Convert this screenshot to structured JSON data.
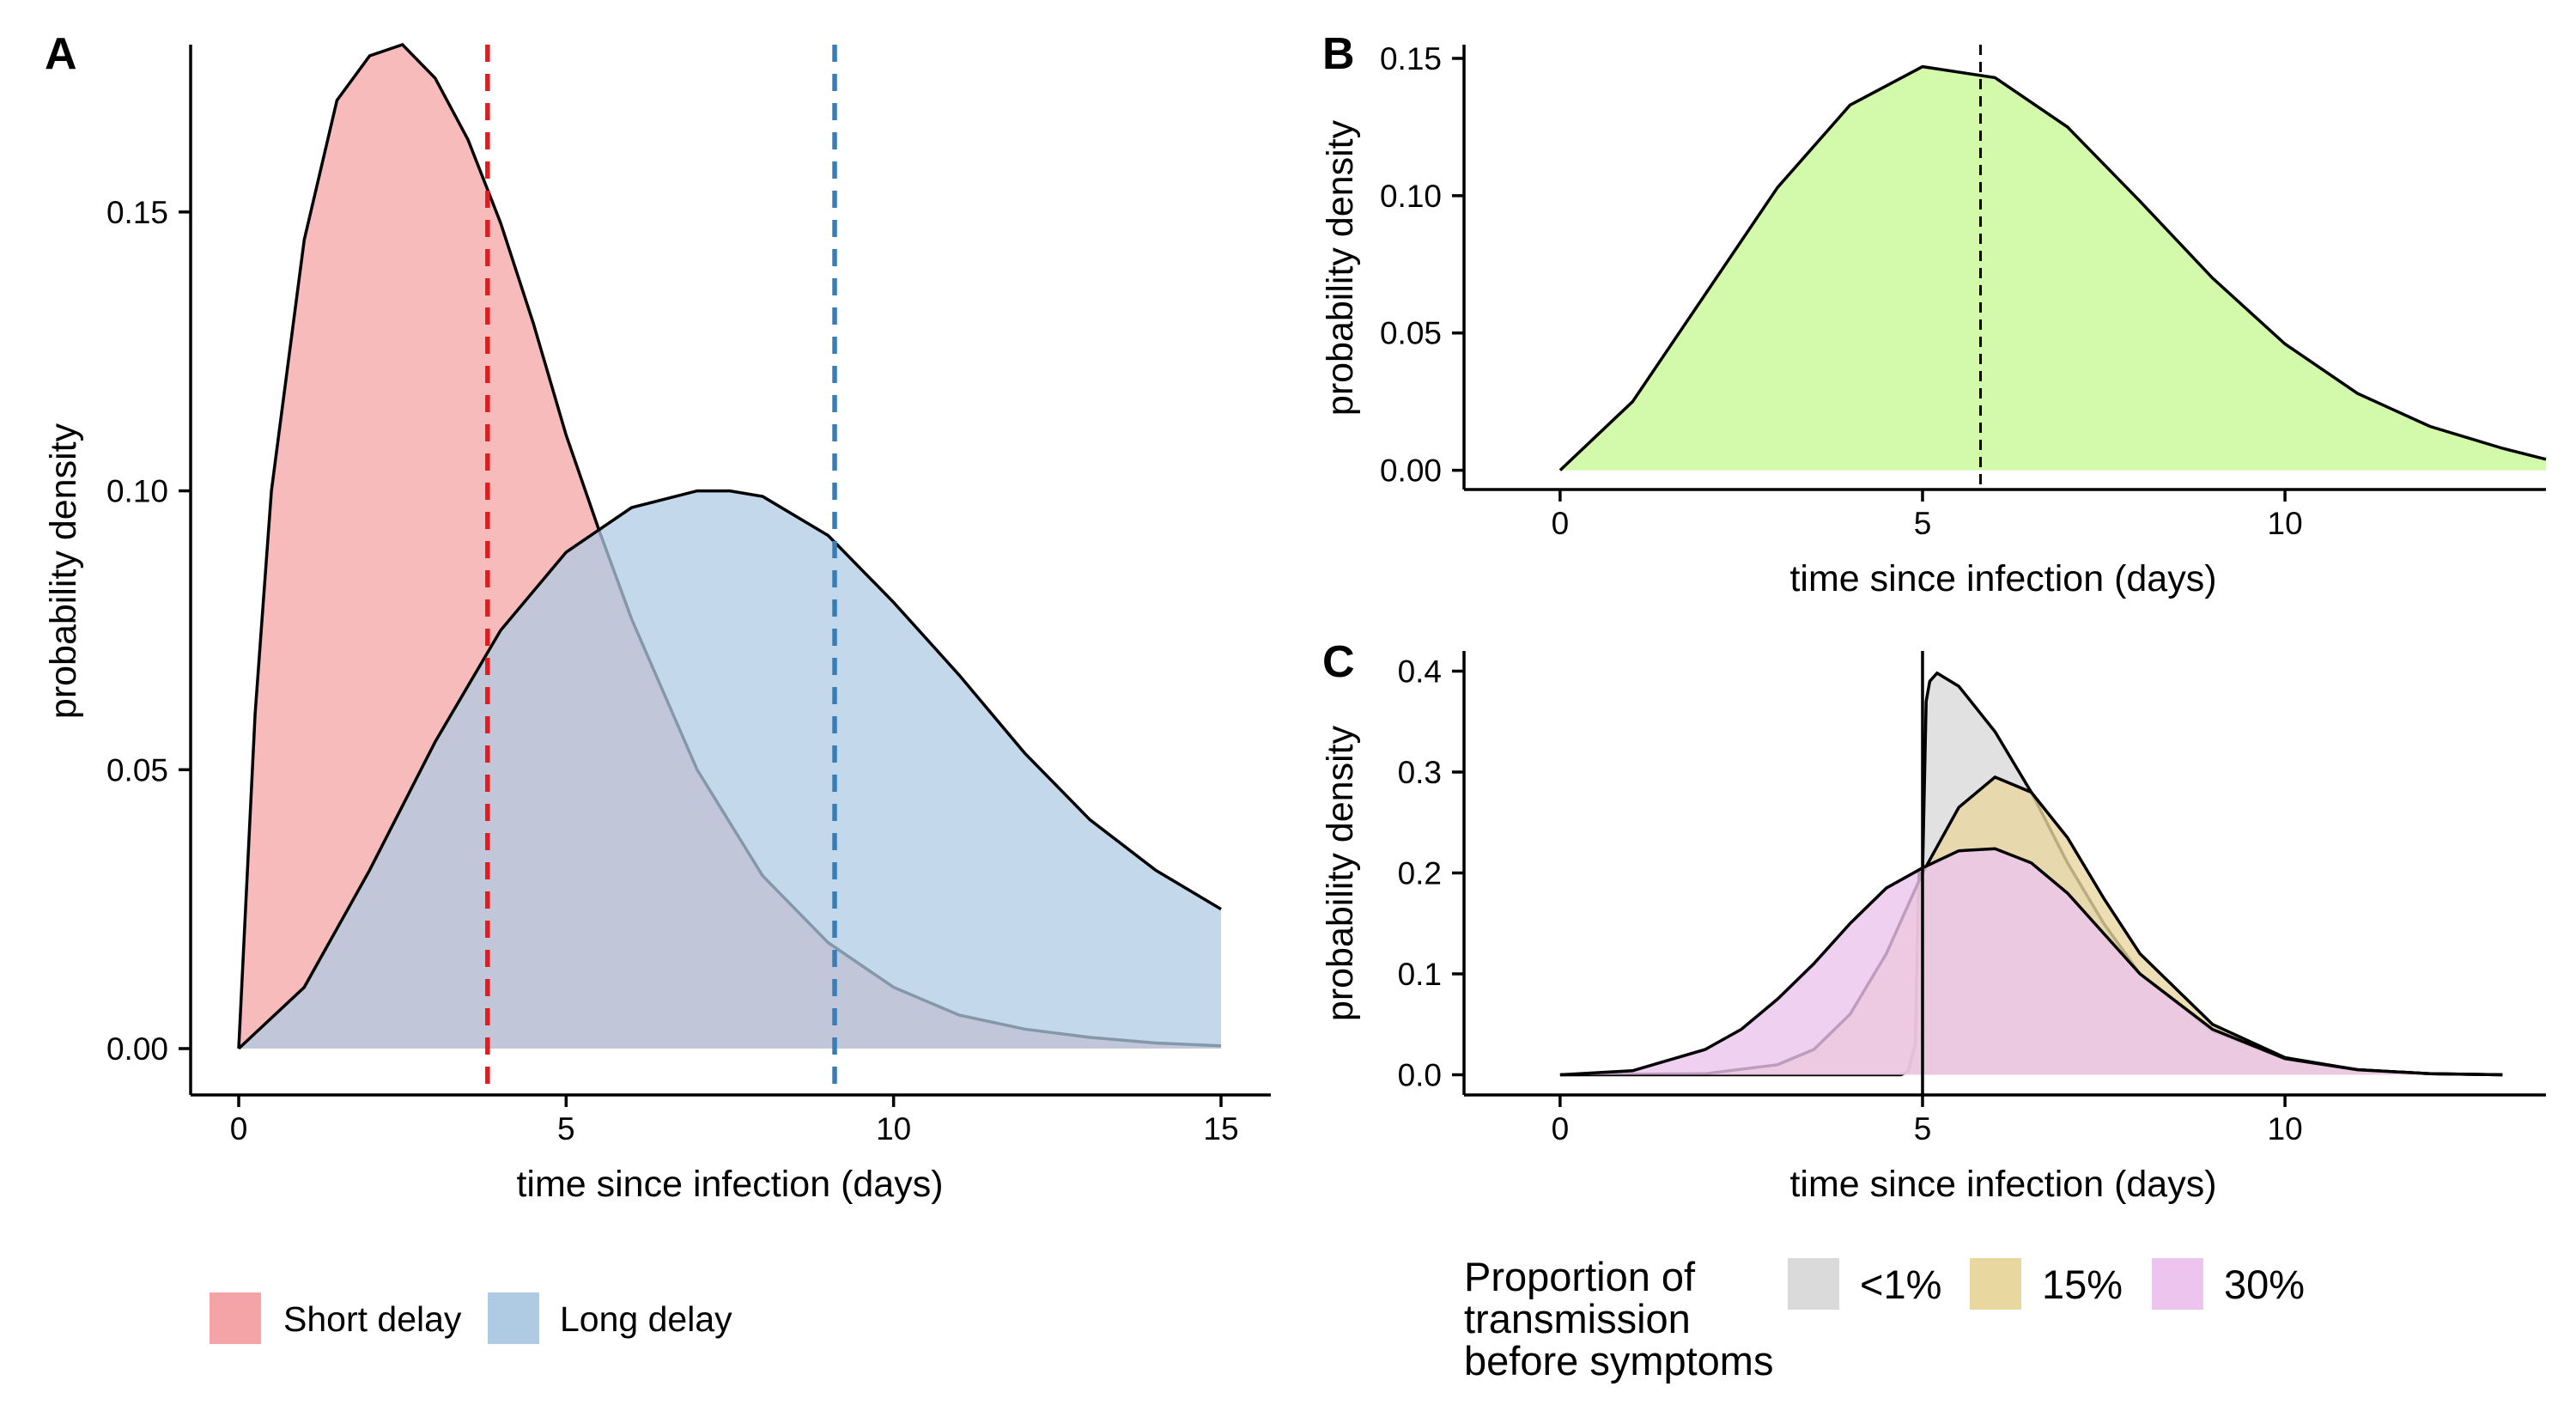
{
  "figure": {
    "panel_labels": [
      "A",
      "B",
      "C"
    ]
  },
  "chart_data": [
    {
      "panel": "A",
      "type": "area",
      "xlabel": "time since infection (days)",
      "ylabel": "probability density",
      "xlim": [
        0,
        15
      ],
      "ylim": [
        0,
        0.18
      ],
      "x_ticks": [
        0,
        5,
        10,
        15
      ],
      "x_tick_labels": [
        "0",
        "5",
        "10",
        "15"
      ],
      "y_ticks": [
        0,
        0.05,
        0.1,
        0.15
      ],
      "y_tick_labels": [
        "0.00",
        "0.05",
        "0.10",
        "0.15"
      ],
      "series": [
        {
          "name": "Short delay",
          "color": "#F4A4A6",
          "x": [
            0,
            0.25,
            0.5,
            1,
            1.5,
            2,
            2.5,
            3,
            3.5,
            4,
            4.5,
            5,
            5.5,
            6,
            7,
            8,
            9,
            10,
            11,
            12,
            13,
            14,
            15
          ],
          "y": [
            0,
            0.06,
            0.1,
            0.145,
            0.17,
            0.178,
            0.18,
            0.174,
            0.163,
            0.148,
            0.13,
            0.11,
            0.093,
            0.077,
            0.05,
            0.031,
            0.019,
            0.011,
            0.006,
            0.0035,
            0.002,
            0.001,
            0.0005
          ]
        },
        {
          "name": "Long delay",
          "color": "#AFCBE3",
          "x": [
            0,
            1,
            2,
            3,
            4,
            5,
            6,
            7,
            7.5,
            8,
            9,
            10,
            11,
            12,
            13,
            14,
            15
          ],
          "y": [
            0,
            0.011,
            0.032,
            0.055,
            0.075,
            0.089,
            0.097,
            0.1,
            0.1,
            0.099,
            0.092,
            0.08,
            0.067,
            0.053,
            0.041,
            0.032,
            0.025
          ]
        }
      ],
      "vlines": [
        {
          "x": 3.8,
          "color": "#E41A1C",
          "style": "dashed"
        },
        {
          "x": 9.1,
          "color": "#377EB8",
          "style": "dashed"
        }
      ],
      "legend": {
        "position": "bottom",
        "entries": [
          "Short delay",
          "Long delay"
        ]
      }
    },
    {
      "panel": "B",
      "type": "area",
      "xlabel": "time since infection (days)",
      "ylabel": "probability density",
      "xlim": [
        -0.65,
        13.6
      ],
      "ylim": [
        -0.007,
        0.155
      ],
      "x_ticks": [
        0,
        5,
        10
      ],
      "x_tick_labels": [
        "0",
        "5",
        "10"
      ],
      "y_ticks": [
        0,
        0.05,
        0.1,
        0.15
      ],
      "y_tick_labels": [
        "0.00",
        "0.05",
        "0.10",
        "0.15"
      ],
      "series": [
        {
          "name": "",
          "color": "#C8F796",
          "x": [
            0,
            1,
            2,
            3,
            4,
            5,
            6,
            7,
            8,
            9,
            10,
            11,
            12,
            13,
            13.6
          ],
          "y": [
            0,
            0.025,
            0.064,
            0.103,
            0.133,
            0.147,
            0.143,
            0.125,
            0.098,
            0.07,
            0.046,
            0.028,
            0.016,
            0.008,
            0.004
          ]
        }
      ],
      "vlines": [
        {
          "x": 5.8,
          "color": "#000000",
          "style": "dashed"
        }
      ]
    },
    {
      "panel": "C",
      "type": "area",
      "xlabel": "time since infection (days)",
      "ylabel": "probability density",
      "xlim": [
        -0.65,
        13.6
      ],
      "ylim": [
        -0.02,
        0.42
      ],
      "x_ticks": [
        0,
        5,
        10
      ],
      "x_tick_labels": [
        "0",
        "5",
        "10"
      ],
      "y_ticks": [
        0,
        0.1,
        0.2,
        0.3,
        0.4
      ],
      "y_tick_labels": [
        "0.0",
        "0.1",
        "0.2",
        "0.3",
        "0.4"
      ],
      "series": [
        {
          "name": "<1%",
          "color": "#DADADA",
          "x": [
            0,
            4,
            4.7,
            4.8,
            4.9,
            4.95,
            5,
            5.05,
            5.1,
            5.2,
            5.5,
            6,
            6.5,
            7,
            7.5,
            8,
            9,
            10,
            11,
            12,
            13
          ],
          "y": [
            0,
            0,
            0.0,
            0.003,
            0.03,
            0.2,
            0.2,
            0.37,
            0.39,
            0.398,
            0.385,
            0.34,
            0.28,
            0.21,
            0.15,
            0.1,
            0.043,
            0.016,
            0.005,
            0.001,
            0
          ]
        },
        {
          "name": "15%",
          "color": "#E9D7A0",
          "x": [
            0,
            2,
            3,
            3.5,
            4,
            4.5,
            5,
            5.5,
            6,
            6.5,
            7,
            7.5,
            8,
            9,
            10,
            11,
            12,
            13
          ],
          "y": [
            0,
            0.001,
            0.01,
            0.025,
            0.06,
            0.12,
            0.2,
            0.265,
            0.295,
            0.28,
            0.235,
            0.175,
            0.12,
            0.05,
            0.017,
            0.005,
            0.001,
            0
          ]
        },
        {
          "name": "30%",
          "color": "#ECC4EE",
          "x": [
            0,
            1,
            2,
            2.5,
            3,
            3.5,
            4,
            4.5,
            5,
            5.5,
            6,
            6.5,
            7,
            7.5,
            8,
            9,
            10,
            11,
            12,
            13
          ],
          "y": [
            0,
            0.004,
            0.025,
            0.045,
            0.075,
            0.11,
            0.15,
            0.185,
            0.205,
            0.222,
            0.224,
            0.21,
            0.18,
            0.14,
            0.1,
            0.045,
            0.016,
            0.005,
            0.001,
            0
          ]
        }
      ],
      "vlines": [
        {
          "x": 5,
          "color": "#000000",
          "style": "solid"
        }
      ],
      "legend": {
        "position": "bottom",
        "title": "Proportion of\ntransmission\nbefore symptoms",
        "entries": [
          "<1%",
          "15%",
          "30%"
        ]
      }
    }
  ]
}
